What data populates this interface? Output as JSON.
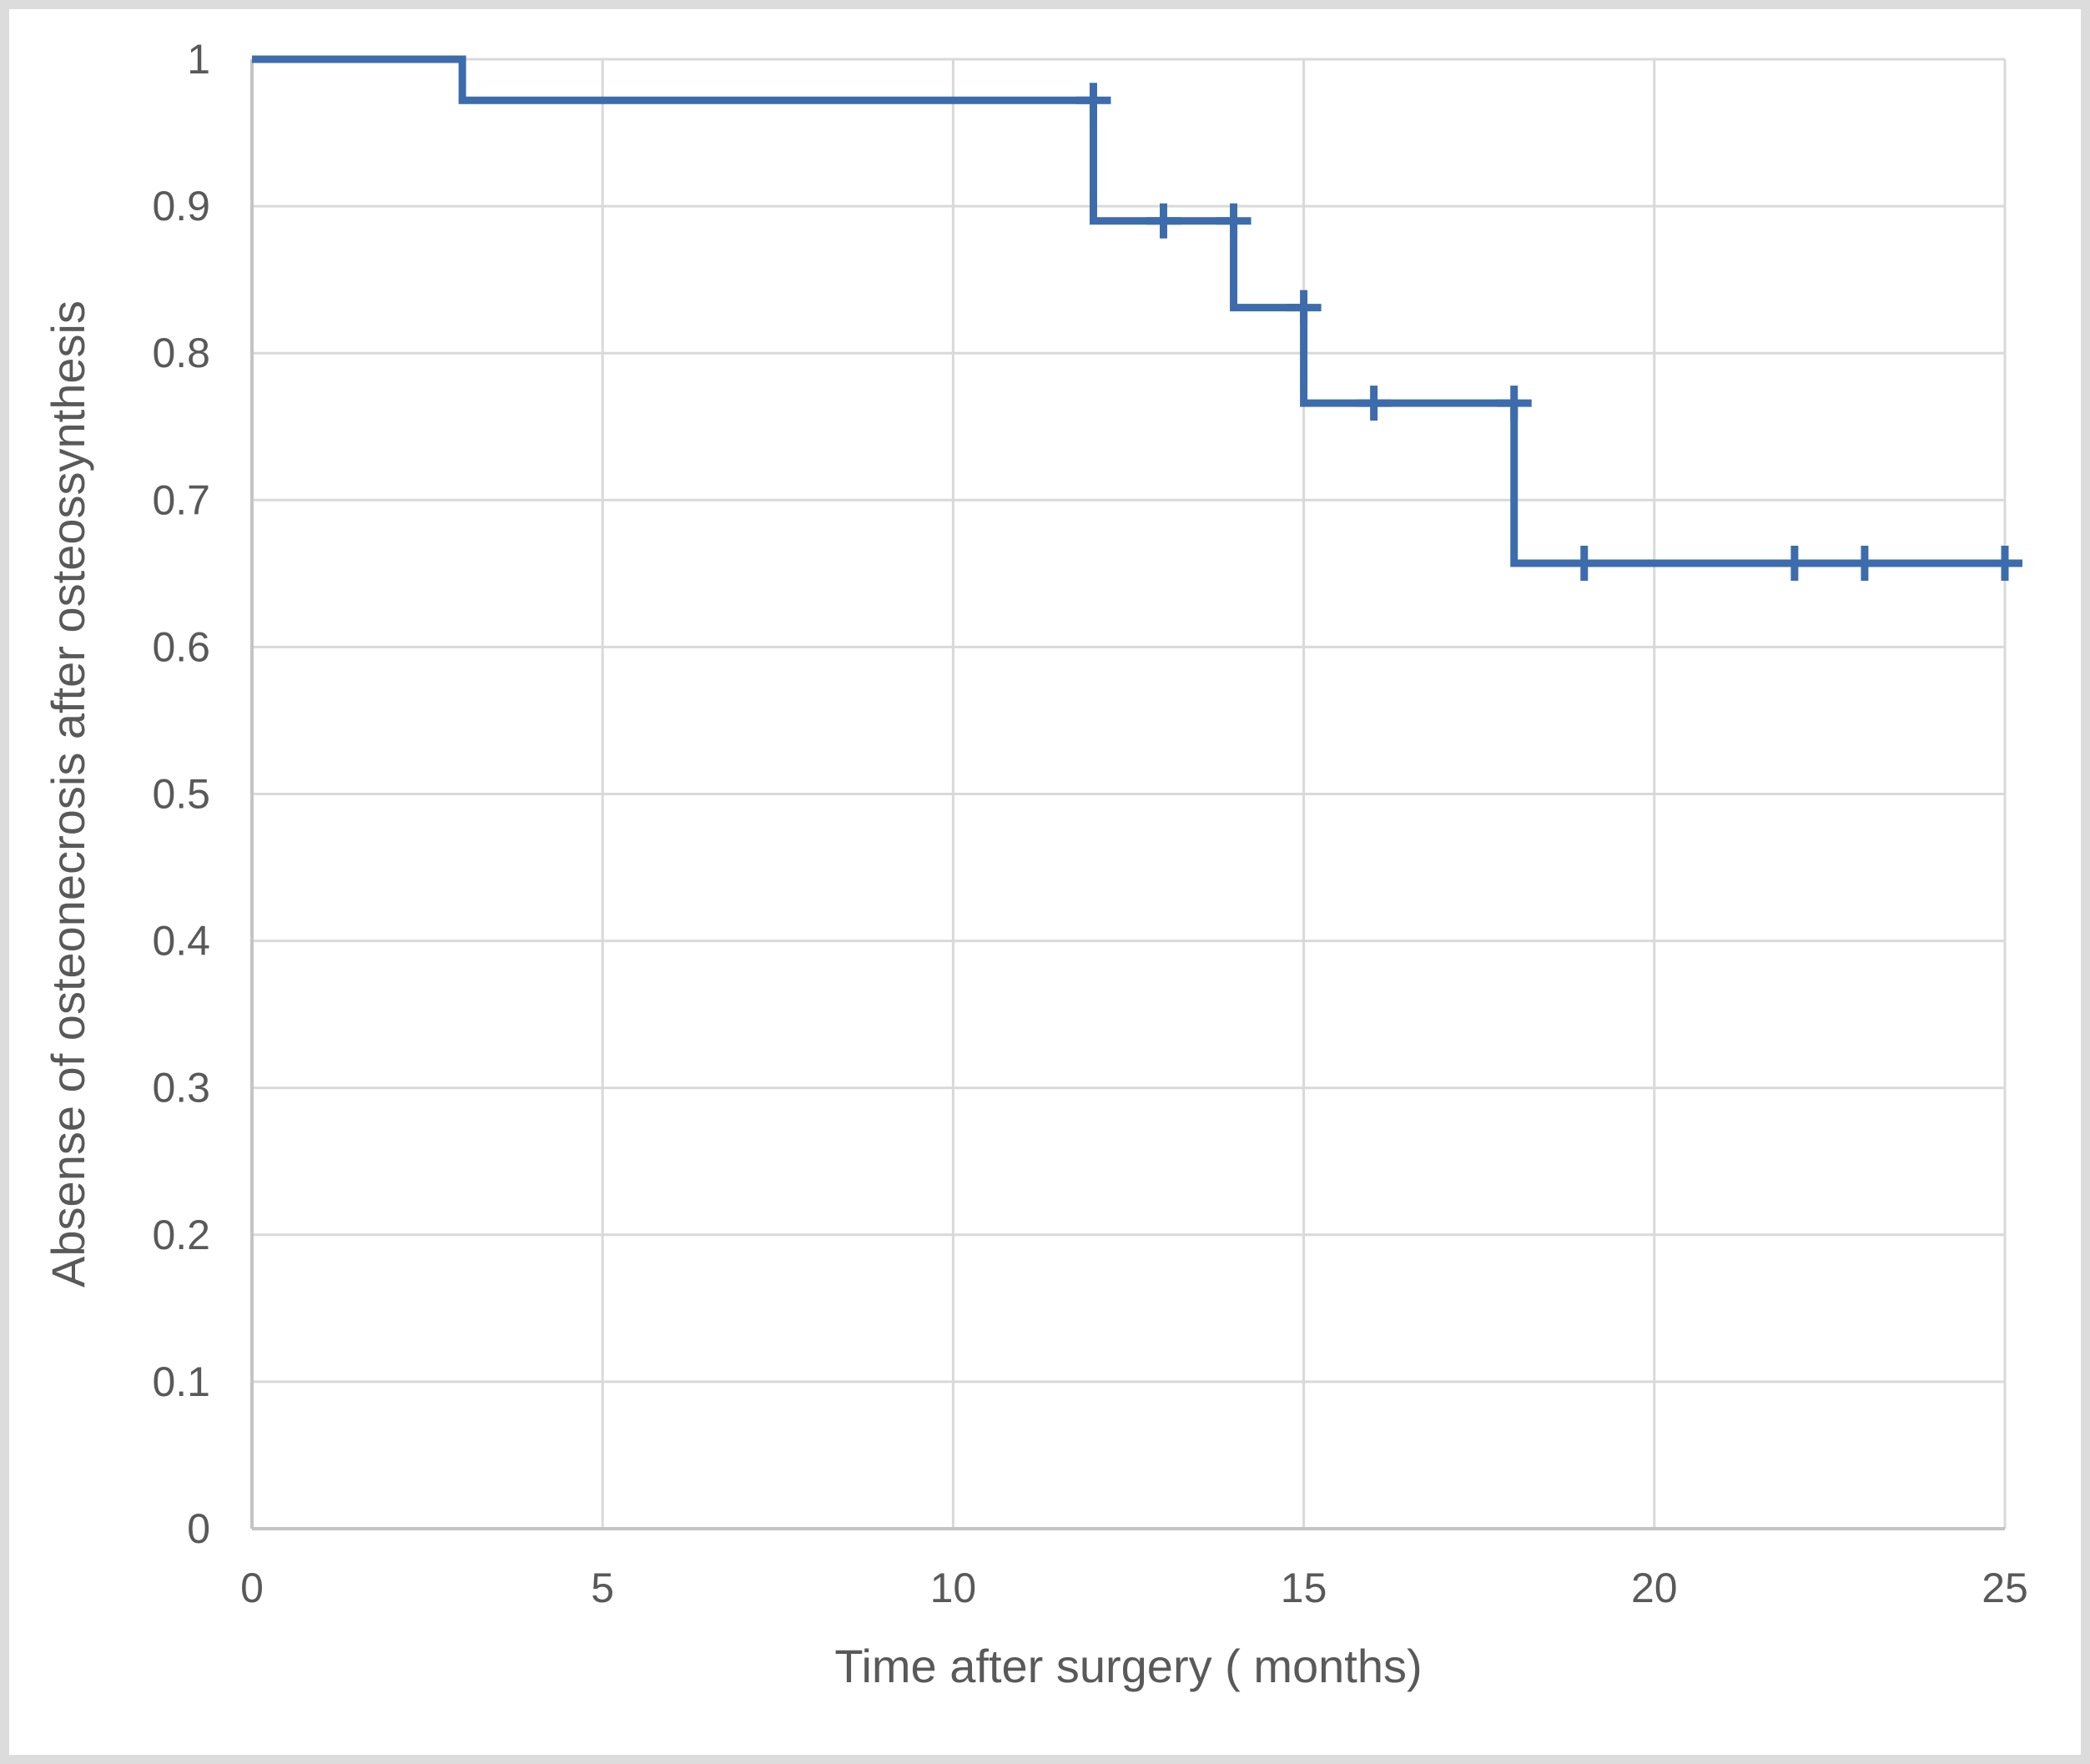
{
  "chart_data": {
    "type": "line",
    "subtype": "kaplan-meier-step",
    "title": "",
    "xlabel": "Time after surgery ( months)",
    "ylabel": "Absense of osteonecrosis after osteossynthesis",
    "xlim": [
      0,
      25
    ],
    "ylim": [
      0,
      1
    ],
    "x_ticks": [
      0,
      5,
      10,
      15,
      20,
      25
    ],
    "x_tick_labels": [
      "0",
      "5",
      "10",
      "15",
      "20",
      "25"
    ],
    "y_ticks": [
      0,
      0.1,
      0.2,
      0.3,
      0.4,
      0.5,
      0.6,
      0.7,
      0.8,
      0.9,
      1
    ],
    "y_tick_labels": [
      "0",
      "0.1",
      "0.2",
      "0.3",
      "0.4",
      "0.5",
      "0.6",
      "0.7",
      "0.8",
      "0.9",
      "1"
    ],
    "grid": true,
    "legend": "none",
    "series": [
      {
        "name": "absence-of-osteonecrosis-survival",
        "step_points": [
          [
            0,
            1.0
          ],
          [
            3,
            1.0
          ],
          [
            3,
            0.972
          ],
          [
            12,
            0.972
          ],
          [
            12,
            0.89
          ],
          [
            14,
            0.89
          ],
          [
            14,
            0.831
          ],
          [
            15,
            0.831
          ],
          [
            15,
            0.766
          ],
          [
            18,
            0.766
          ],
          [
            18,
            0.657
          ],
          [
            25,
            0.657
          ]
        ],
        "censor_marks": [
          [
            12,
            0.972
          ],
          [
            13,
            0.89
          ],
          [
            14,
            0.89
          ],
          [
            15,
            0.831
          ],
          [
            16,
            0.766
          ],
          [
            18,
            0.766
          ],
          [
            19,
            0.657
          ],
          [
            22,
            0.657
          ],
          [
            23,
            0.657
          ],
          [
            25,
            0.657
          ]
        ]
      }
    ],
    "colors": {
      "line": "#3d6cac",
      "gridline": "#d9d9d9",
      "axis_line": "#c4c4c4",
      "text": "#595959",
      "plot_background": "#ffffff",
      "frame_border": "#dcdcdc"
    }
  }
}
